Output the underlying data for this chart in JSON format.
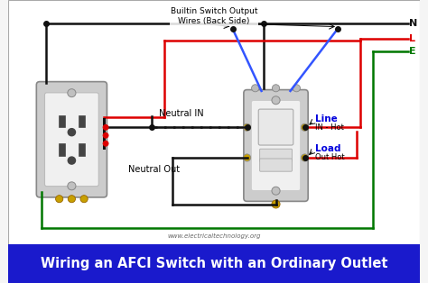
{
  "bg_color": "#f5f5f5",
  "title_text": "Wiring an AFCI Switch with an Ordinary Outlet",
  "title_bg": "#1a1acc",
  "title_color": "#ffffff",
  "title_fontsize": 10.5,
  "website": "www.electricaltechnology.org",
  "label_builtin": "Builtin Switch Output\nWires (Back Side)",
  "label_neutral_in": "Neutral IN",
  "label_neutral_out": "Neutral Out",
  "label_line": "Line",
  "label_line_sub": "IN - Hot",
  "label_load": "Load",
  "label_load_sub": "Out Hot",
  "N_label": "N",
  "L_label": "L",
  "E_label": "E",
  "wire_black": "#111111",
  "wire_red": "#dd0000",
  "wire_green": "#007700",
  "wire_blue": "#3355ff",
  "label_line_color": "#0000dd",
  "label_load_color": "#0000dd",
  "lw": 1.8
}
